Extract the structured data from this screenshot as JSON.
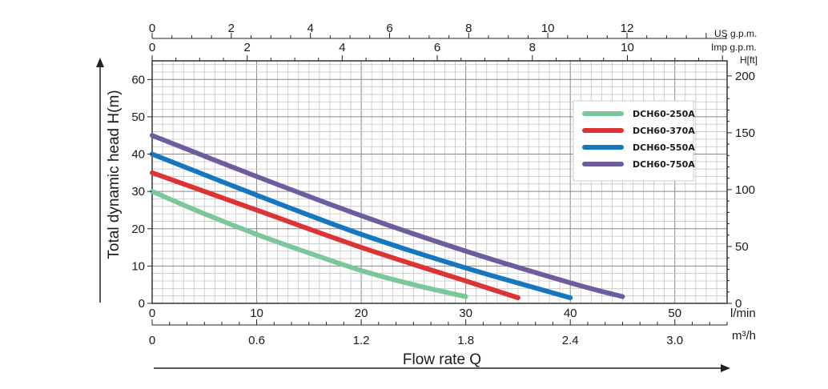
{
  "chart_data": {
    "type": "line",
    "xlabel": "Flow rate Q",
    "ylabel": "Total dynamic head H(m)",
    "xlim": [
      0,
      55
    ],
    "ylim": [
      0,
      65
    ],
    "grid": true,
    "legend_position": "top-right",
    "units": {
      "x_primary": "l/min",
      "x_secondary": "m³/h",
      "x_top_us": "US g.p.m.",
      "x_top_imp": "Imp g.p.m.",
      "y_right": "H[ft]"
    },
    "ticks": {
      "y_left": [
        "0",
        "10",
        "20",
        "30",
        "40",
        "50",
        "60"
      ],
      "y_right": [
        "0",
        "50",
        "100",
        "150",
        "200"
      ],
      "x_lpm": [
        "0",
        "10",
        "20",
        "30",
        "40",
        "50"
      ],
      "x_m3h": [
        "0",
        "0.6",
        "1.2",
        "1.8",
        "2.4",
        "3.0"
      ],
      "x_us_gpm": [
        "0",
        "2",
        "4",
        "6",
        "8",
        "10",
        "12"
      ],
      "x_imp_gpm": [
        "0",
        "2",
        "4",
        "6",
        "8",
        "10"
      ]
    },
    "series": [
      {
        "name": "DCH60-250A",
        "color": "#7ac89a",
        "x": [
          0,
          5,
          10,
          15,
          20,
          25,
          30
        ],
        "y": [
          30,
          24,
          18.5,
          13.5,
          8.8,
          5,
          1.8
        ]
      },
      {
        "name": "DCH60-370A",
        "color": "#dd3333",
        "x": [
          0,
          10,
          20,
          30,
          35
        ],
        "y": [
          35,
          25,
          15,
          6,
          1.5
        ]
      },
      {
        "name": "DCH60-550A",
        "color": "#1577be",
        "x": [
          0,
          10,
          20,
          30,
          40
        ],
        "y": [
          40,
          29,
          18.5,
          9.5,
          1.5
        ]
      },
      {
        "name": "DCH60-750A",
        "color": "#6e5c9e",
        "x": [
          0,
          10,
          20,
          30,
          40,
          45
        ],
        "y": [
          45,
          34,
          23.5,
          14,
          5.5,
          1.8
        ]
      }
    ]
  }
}
